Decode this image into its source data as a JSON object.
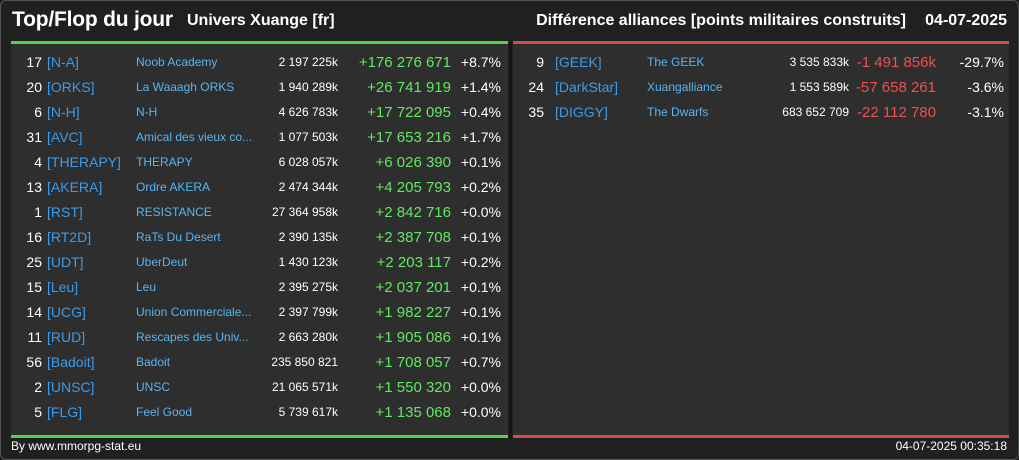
{
  "header": {
    "title": "Top/Flop du jour",
    "universe": "Univers Xuange [fr]",
    "description": "Différence alliances [points militaires construits]",
    "date": "04-07-2025"
  },
  "top": [
    {
      "rank": "17",
      "tag": "[N-A]",
      "name": "Noob Academy",
      "points": "2 197 225k",
      "diff": "+176 276 671",
      "pct": "+8.7%"
    },
    {
      "rank": "20",
      "tag": "[ORKS]",
      "name": "La Waaagh ORKS",
      "points": "1 940 289k",
      "diff": "+26 741 919",
      "pct": "+1.4%"
    },
    {
      "rank": "6",
      "tag": "[N-H]",
      "name": "N-H",
      "points": "4 626 783k",
      "diff": "+17 722 095",
      "pct": "+0.4%"
    },
    {
      "rank": "31",
      "tag": "[AVC]",
      "name": "Amical des vieux co...",
      "points": "1 077 503k",
      "diff": "+17 653 216",
      "pct": "+1.7%"
    },
    {
      "rank": "4",
      "tag": "[THERAPY]",
      "name": "THERAPY",
      "points": "6 028 057k",
      "diff": "+6 026 390",
      "pct": "+0.1%"
    },
    {
      "rank": "13",
      "tag": "[AKERA]",
      "name": "Ordre AKERA",
      "points": "2 474 344k",
      "diff": "+4 205 793",
      "pct": "+0.2%"
    },
    {
      "rank": "1",
      "tag": "[RST]",
      "name": "RESISTANCE",
      "points": "27 364 958k",
      "diff": "+2 842 716",
      "pct": "+0.0%"
    },
    {
      "rank": "16",
      "tag": "[RT2D]",
      "name": "RaTs Du Desert",
      "points": "2 390 135k",
      "diff": "+2 387 708",
      "pct": "+0.1%"
    },
    {
      "rank": "25",
      "tag": "[UDT]",
      "name": "UberDeut",
      "points": "1 430 123k",
      "diff": "+2 203 117",
      "pct": "+0.2%"
    },
    {
      "rank": "15",
      "tag": "[Leu]",
      "name": "Leu",
      "points": "2 395 275k",
      "diff": "+2 037 201",
      "pct": "+0.1%"
    },
    {
      "rank": "14",
      "tag": "[UCG]",
      "name": "Union Commerciale...",
      "points": "2 397 799k",
      "diff": "+1 982 227",
      "pct": "+0.1%"
    },
    {
      "rank": "11",
      "tag": "[RUD]",
      "name": "Rescapes des Univ...",
      "points": "2 663 280k",
      "diff": "+1 905 086",
      "pct": "+0.1%"
    },
    {
      "rank": "56",
      "tag": "[Badoit]",
      "name": "Badoit",
      "points": "235 850 821",
      "diff": "+1 708 057",
      "pct": "+0.7%"
    },
    {
      "rank": "2",
      "tag": "[UNSC]",
      "name": "UNSC",
      "points": "21 065 571k",
      "diff": "+1 550 320",
      "pct": "+0.0%"
    },
    {
      "rank": "5",
      "tag": "[FLG]",
      "name": "Feel Good",
      "points": "5 739 617k",
      "diff": "+1 135 068",
      "pct": "+0.0%"
    }
  ],
  "flop": [
    {
      "rank": "9",
      "tag": "[GEEK]",
      "name": "The GEEK",
      "points": "3 535 833k",
      "diff": "-1 491 856k",
      "pct": "-29.7%"
    },
    {
      "rank": "24",
      "tag": "[DarkStar]",
      "name": "Xuangalliance",
      "points": "1 553 589k",
      "diff": "-57 658 261",
      "pct": "-3.6%"
    },
    {
      "rank": "35",
      "tag": "[DIGGY]",
      "name": "The Dwarfs",
      "points": "683 652 709",
      "diff": "-22 112 780",
      "pct": "-3.1%"
    }
  ],
  "footer": {
    "credit": "By www.mmorpg-stat.eu",
    "timestamp": "04-07-2025 00:35:18"
  },
  "colors": {
    "positive": "#62e862",
    "negative": "#ee5050",
    "tag": "#3d9be8",
    "name": "#5ab4f0"
  }
}
